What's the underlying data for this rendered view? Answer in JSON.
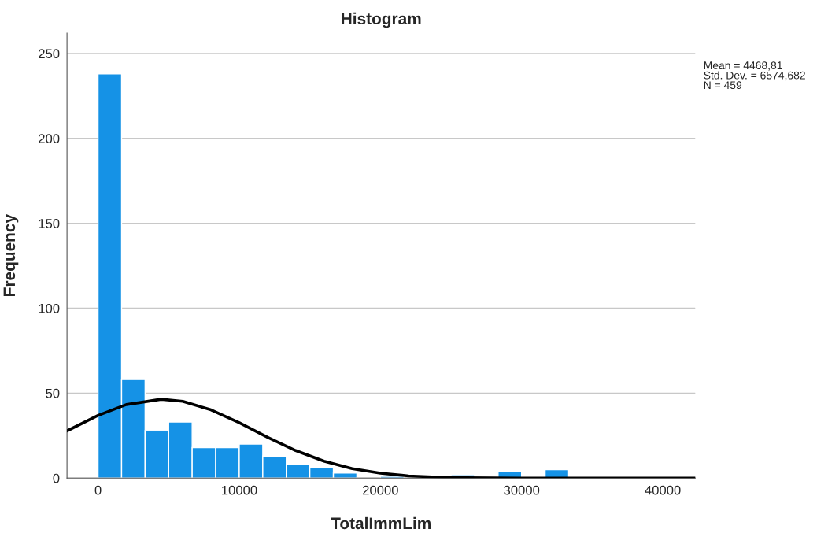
{
  "chart_data": {
    "type": "histogram",
    "title": "Histogram",
    "xlabel": "TotalImmLim",
    "ylabel": "Frequency",
    "bins": [
      0,
      1667,
      3333,
      5000,
      6667,
      8333,
      10000,
      11667,
      13333,
      15000,
      16667,
      18333,
      20000,
      21667,
      23333,
      25000,
      26667,
      28333,
      30000,
      31667,
      33333
    ],
    "values": [
      238,
      58,
      28,
      33,
      18,
      18,
      20,
      13,
      8,
      6,
      3,
      0,
      1,
      0,
      0,
      2,
      0,
      4,
      0,
      5
    ],
    "color": "#1592e6",
    "series": [
      {
        "type": "line",
        "color": "#000000",
        "x": [
          -2200,
          0,
          2000,
          4469,
          6000,
          8000,
          10000,
          12000,
          14000,
          16000,
          18000,
          20000,
          22000,
          24000,
          26000,
          30000,
          42300
        ],
        "values": [
          27.8,
          36.9,
          43.3,
          46.4,
          45.2,
          40.2,
          32.6,
          24.1,
          16.2,
          10.0,
          5.6,
          2.9,
          1.3,
          0.6,
          0.2,
          0,
          0
        ]
      }
    ],
    "xlim": [
      -2200,
      42300
    ],
    "xticks": [
      0,
      10000,
      20000,
      30000,
      40000
    ],
    "ylim": [
      0,
      262
    ],
    "yticks": [
      0,
      50,
      100,
      150,
      200,
      250
    ],
    "grid": "y",
    "annotations": [
      "Mean = 4468,81",
      "Std. Dev. = 6574,682",
      "N = 459"
    ]
  }
}
